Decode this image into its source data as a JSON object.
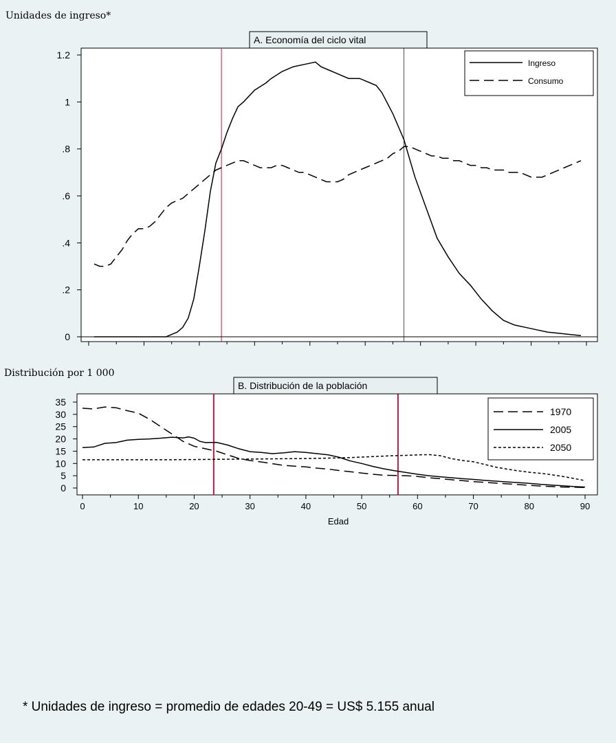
{
  "colors": {
    "background": "#eaf2f3",
    "plot_bg": "#ffffff",
    "title_box": "#e7eff1",
    "guide_line": "#b0203c",
    "series": "#000000"
  },
  "footnote": "* Unidades de ingreso = promedio de edades 20-49 = US$ 5.155 anual",
  "chart_data": [
    {
      "type": "line",
      "title": "A. Economía del ciclo vital",
      "ylabel": "Unidades de ingreso*",
      "xlabel": "",
      "xlim": [
        0,
        90
      ],
      "ylim": [
        0,
        1.2
      ],
      "yticks": [
        0,
        0.2,
        0.4,
        0.6,
        0.8,
        1,
        1.2
      ],
      "ytick_labels": [
        "0",
        ".2",
        ".4",
        ".6",
        ".8",
        "1",
        "1.2"
      ],
      "xticks": [
        0,
        10,
        20,
        30,
        40,
        50,
        60,
        70,
        80,
        90
      ],
      "grid": false,
      "legend": "top-right",
      "vlines": [
        24,
        57
      ],
      "series": [
        {
          "name": "Ingreso",
          "dash": "solid",
          "x": [
            1,
            3,
            5,
            7,
            9,
            11,
            13,
            14,
            15,
            16,
            17,
            18,
            19,
            20,
            21,
            22,
            23,
            24,
            25,
            26,
            27,
            28,
            30,
            32,
            33,
            35,
            37,
            39,
            41,
            42,
            43,
            45,
            47,
            49,
            50,
            51,
            52,
            53,
            55,
            57,
            59,
            61,
            63,
            65,
            67,
            69,
            71,
            73,
            75,
            77,
            79,
            81,
            83,
            85,
            87,
            89
          ],
          "y": [
            0,
            0,
            0,
            0,
            0,
            0,
            0,
            0,
            0.01,
            0.02,
            0.04,
            0.08,
            0.16,
            0.3,
            0.45,
            0.62,
            0.74,
            0.8,
            0.87,
            0.93,
            0.98,
            1.0,
            1.05,
            1.08,
            1.1,
            1.13,
            1.15,
            1.16,
            1.17,
            1.15,
            1.14,
            1.12,
            1.1,
            1.1,
            1.09,
            1.08,
            1.07,
            1.04,
            0.95,
            0.84,
            0.68,
            0.55,
            0.42,
            0.34,
            0.27,
            0.22,
            0.16,
            0.11,
            0.07,
            0.05,
            0.04,
            0.03,
            0.02,
            0.015,
            0.01,
            0.005
          ]
        },
        {
          "name": "Consumo",
          "dash": "long",
          "x": [
            1,
            2,
            3,
            4,
            5,
            6,
            7,
            8,
            9,
            10,
            11,
            12,
            13,
            14,
            15,
            16,
            17,
            18,
            19,
            20,
            21,
            22,
            23,
            24,
            25,
            26,
            27,
            28,
            29,
            30,
            31,
            32,
            33,
            34,
            35,
            36,
            37,
            38,
            39,
            40,
            41,
            42,
            43,
            44,
            45,
            46,
            47,
            48,
            49,
            50,
            51,
            52,
            53,
            54,
            55,
            56,
            57,
            58,
            59,
            60,
            61,
            62,
            63,
            64,
            65,
            66,
            67,
            68,
            69,
            70,
            71,
            72,
            73,
            74,
            75,
            76,
            77,
            78,
            79,
            80,
            81,
            82,
            83,
            84,
            85,
            86,
            87,
            88,
            89
          ],
          "y": [
            0.31,
            0.3,
            0.3,
            0.31,
            0.34,
            0.37,
            0.41,
            0.44,
            0.46,
            0.46,
            0.47,
            0.49,
            0.52,
            0.55,
            0.57,
            0.58,
            0.59,
            0.61,
            0.63,
            0.65,
            0.67,
            0.69,
            0.71,
            0.72,
            0.73,
            0.74,
            0.75,
            0.75,
            0.74,
            0.73,
            0.72,
            0.72,
            0.72,
            0.73,
            0.73,
            0.72,
            0.71,
            0.7,
            0.7,
            0.69,
            0.68,
            0.67,
            0.66,
            0.66,
            0.66,
            0.67,
            0.69,
            0.7,
            0.71,
            0.72,
            0.73,
            0.74,
            0.75,
            0.76,
            0.78,
            0.79,
            0.81,
            0.81,
            0.8,
            0.79,
            0.78,
            0.77,
            0.77,
            0.76,
            0.76,
            0.75,
            0.75,
            0.74,
            0.73,
            0.73,
            0.72,
            0.72,
            0.71,
            0.71,
            0.71,
            0.7,
            0.7,
            0.7,
            0.69,
            0.68,
            0.68,
            0.68,
            0.69,
            0.7,
            0.71,
            0.72,
            0.73,
            0.74,
            0.75
          ]
        }
      ]
    },
    {
      "type": "line",
      "title": "B. Distribución de la población",
      "ylabel": "Distribución por 1 000",
      "xlabel": "Edad",
      "xlim": [
        0,
        90
      ],
      "ylim": [
        0,
        35
      ],
      "yticks": [
        0,
        5,
        10,
        15,
        20,
        25,
        30,
        35
      ],
      "ytick_labels": [
        "0",
        "5",
        "10",
        "15",
        "20",
        "25",
        "30",
        "35"
      ],
      "xticks": [
        0,
        10,
        20,
        30,
        40,
        50,
        60,
        70,
        80,
        90
      ],
      "xtick_labels": [
        "0",
        "10",
        "20",
        "30",
        "40",
        "50",
        "60",
        "70",
        "80",
        "90"
      ],
      "grid": false,
      "legend": "top-right",
      "vlines": [
        23.5,
        56.5
      ],
      "series": [
        {
          "name": "1970",
          "dash": "long",
          "x": [
            0,
            2,
            4,
            6,
            8,
            10,
            12,
            14,
            16,
            18,
            20,
            22,
            24,
            26,
            28,
            30,
            32,
            34,
            36,
            38,
            40,
            42,
            44,
            46,
            48,
            50,
            52,
            54,
            56,
            58,
            60,
            62,
            64,
            66,
            68,
            70,
            72,
            74,
            76,
            78,
            80,
            82,
            84,
            86,
            88,
            90
          ],
          "y": [
            32.5,
            32.2,
            33,
            32.7,
            31.5,
            30.5,
            28,
            25,
            22,
            19,
            17,
            16,
            15,
            13.5,
            12,
            11.2,
            10.6,
            9.9,
            9.2,
            8.9,
            8.6,
            8.1,
            7.7,
            7.1,
            6.6,
            6.1,
            5.6,
            5.2,
            5.1,
            5.0,
            4.7,
            4.2,
            3.8,
            3.4,
            3.0,
            2.6,
            2.3,
            2.0,
            1.7,
            1.4,
            1.1,
            0.8,
            0.6,
            0.4,
            0.3,
            0.2
          ]
        },
        {
          "name": "2005",
          "dash": "solid",
          "x": [
            0,
            2,
            4,
            6,
            8,
            10,
            12,
            14,
            16,
            18,
            19,
            20,
            21,
            22,
            24,
            26,
            28,
            30,
            32,
            34,
            36,
            38,
            40,
            42,
            44,
            46,
            48,
            50,
            52,
            54,
            56,
            58,
            60,
            62,
            64,
            66,
            68,
            70,
            72,
            74,
            76,
            78,
            80,
            82,
            84,
            86,
            88,
            90
          ],
          "y": [
            16.5,
            16.7,
            18.2,
            18.5,
            19.5,
            19.8,
            20,
            20.3,
            20.7,
            20.4,
            20.8,
            20.3,
            19,
            18.5,
            18.6,
            17.5,
            16,
            14.8,
            14.5,
            14,
            14.3,
            14.8,
            14.5,
            14,
            13.5,
            12.5,
            11,
            10,
            8.8,
            7.8,
            7,
            6.3,
            5.6,
            5,
            4.6,
            4.2,
            3.8,
            3.5,
            3.1,
            2.8,
            2.5,
            2.2,
            1.9,
            1.5,
            1.2,
            0.9,
            0.6,
            0.4
          ]
        },
        {
          "name": "2050",
          "dash": "short",
          "x": [
            0,
            5,
            10,
            15,
            20,
            25,
            30,
            35,
            40,
            45,
            48,
            50,
            52,
            55,
            58,
            60,
            62,
            64,
            66,
            68,
            70,
            72,
            74,
            76,
            78,
            80,
            82,
            84,
            86,
            88,
            90
          ],
          "y": [
            11.5,
            11.5,
            11.5,
            11.5,
            11.6,
            11.7,
            11.8,
            11.9,
            12.0,
            12.2,
            12.4,
            12.6,
            12.8,
            13.1,
            13.3,
            13.5,
            13.6,
            13.2,
            12,
            11.2,
            10.7,
            9.6,
            8.5,
            7.7,
            7.0,
            6.4,
            6.0,
            5.4,
            4.7,
            3.9,
            3.0
          ]
        }
      ]
    }
  ]
}
